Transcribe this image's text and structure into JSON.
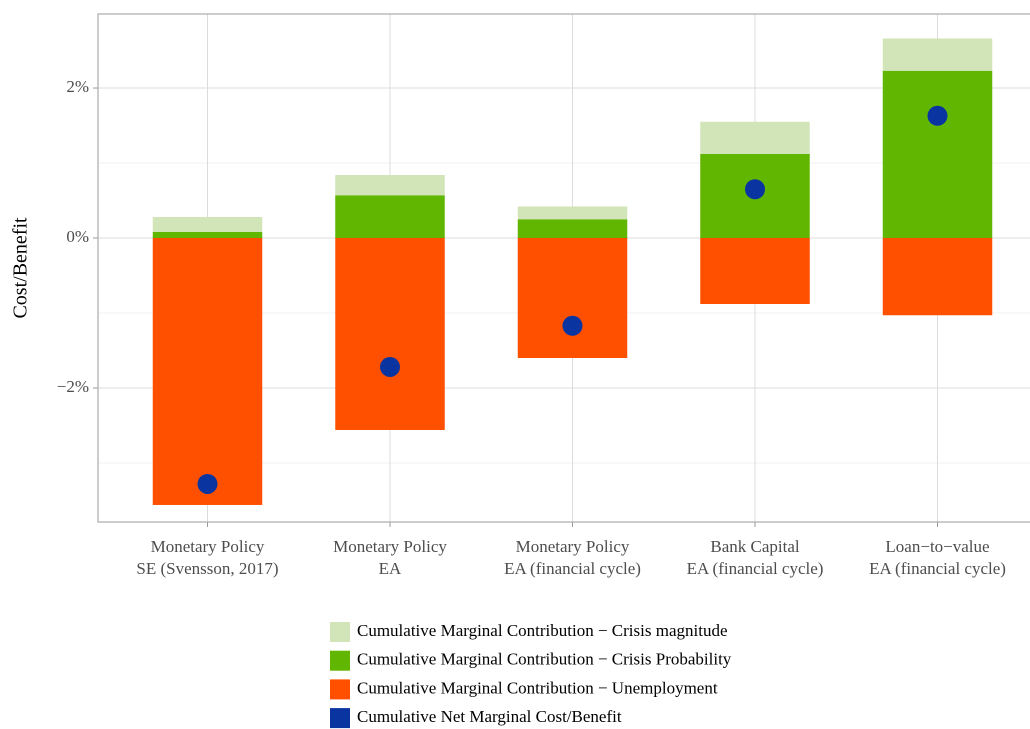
{
  "chart_data": {
    "type": "bar",
    "y_label": "Cost/Benefit",
    "categories": [
      [
        "Monetary Policy",
        "SE (Svensson, 2017)"
      ],
      [
        "Monetary Policy",
        "EA"
      ],
      [
        "Monetary Policy",
        "EA (financial cycle)"
      ],
      [
        "Bank Capital",
        "EA (financial cycle)"
      ],
      [
        "Loan−to−value",
        "EA (financial cycle)"
      ]
    ],
    "series": [
      {
        "name": "Cumulative Marginal Contribution − Crisis magnitude",
        "color": "#d1e5b8",
        "values": [
          0.2,
          0.27,
          0.17,
          0.43,
          0.43
        ]
      },
      {
        "name": "Cumulative Marginal Contribution − Crisis Probability",
        "color": "#60b600",
        "values": [
          0.08,
          0.57,
          0.25,
          1.12,
          2.23
        ]
      },
      {
        "name": "Cumulative Marginal Contribution − Unemployment",
        "color": "#ff5000",
        "values": [
          -3.56,
          -2.56,
          -1.6,
          -0.88,
          -1.03
        ]
      },
      {
        "name": "Cumulative Net Marginal Cost/Benefit",
        "color": "#0a35a0",
        "mark": "point",
        "values": [
          -3.28,
          -1.72,
          -1.17,
          0.65,
          1.63
        ]
      }
    ],
    "ylim": [
      -3.787,
      2.987
    ],
    "yticks": [
      {
        "value": -2,
        "label": "−2%"
      },
      {
        "value": 0,
        "label": "0%"
      },
      {
        "value": 2,
        "label": "2%"
      }
    ],
    "minor_yticks": [
      -3,
      -1,
      1
    ],
    "grid": true
  }
}
